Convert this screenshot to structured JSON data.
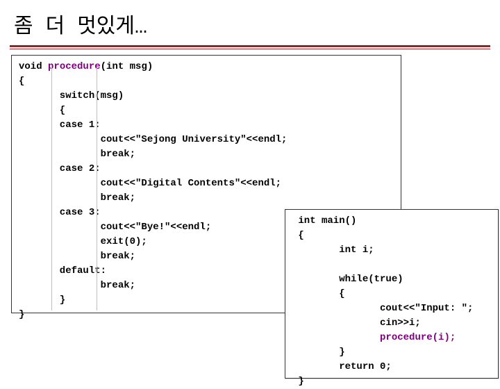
{
  "colors": {
    "title_rule": "#a02020",
    "title_rule_thin": "#a02020",
    "fn_color": "#800080",
    "hl_color": "#800080",
    "box_border": "#333333"
  },
  "title": "좀 더 멋있게…",
  "code1": {
    "l1_a": "void ",
    "l1_b": "procedure",
    "l1_c": "(int msg)",
    "l2": "{",
    "l3": "       switch(msg)",
    "l4": "       {",
    "l5": "       case 1:",
    "l6": "              cout<<\"Sejong University\"<<endl;",
    "l7": "              break;",
    "l8": "       case 2:",
    "l9": "              cout<<\"Digital Contents\"<<endl;",
    "l10": "              break;",
    "l11": "       case 3:",
    "l12": "              cout<<\"Bye!\"<<endl;",
    "l13": "              exit(0);",
    "l14": "              break;",
    "l15": "       default:",
    "l16": "              break;",
    "l17": "       }",
    "l18": "}"
  },
  "code2": {
    "l1": " int main()",
    "l2": " {",
    "l3": "        int i;",
    "l4": "",
    "l5": "        while(true)",
    "l6": "        {",
    "l7a": "               cout<<\"Input: \";",
    "l8": "               cin>>i;",
    "l9a": "               ",
    "l9b": "procedure(i);",
    "l10": "        }",
    "l11": "        return 0;",
    "l12": " }"
  }
}
